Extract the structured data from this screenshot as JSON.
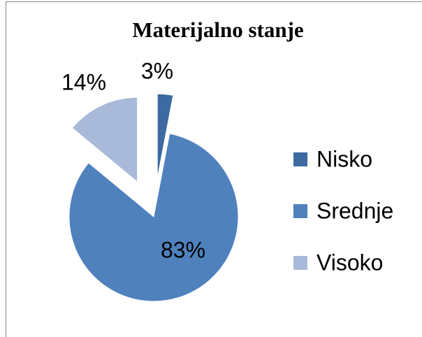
{
  "chart_data": {
    "type": "pie",
    "title": "Materijalno stanje",
    "categories": [
      "Nisko",
      "Srednje",
      "Visoko"
    ],
    "values": [
      3,
      83,
      14
    ],
    "value_labels": [
      "3%",
      "83%",
      "14%"
    ],
    "colors": [
      "#3d6aa0",
      "#4f81bd",
      "#a9b9d9"
    ],
    "legend": "right"
  }
}
